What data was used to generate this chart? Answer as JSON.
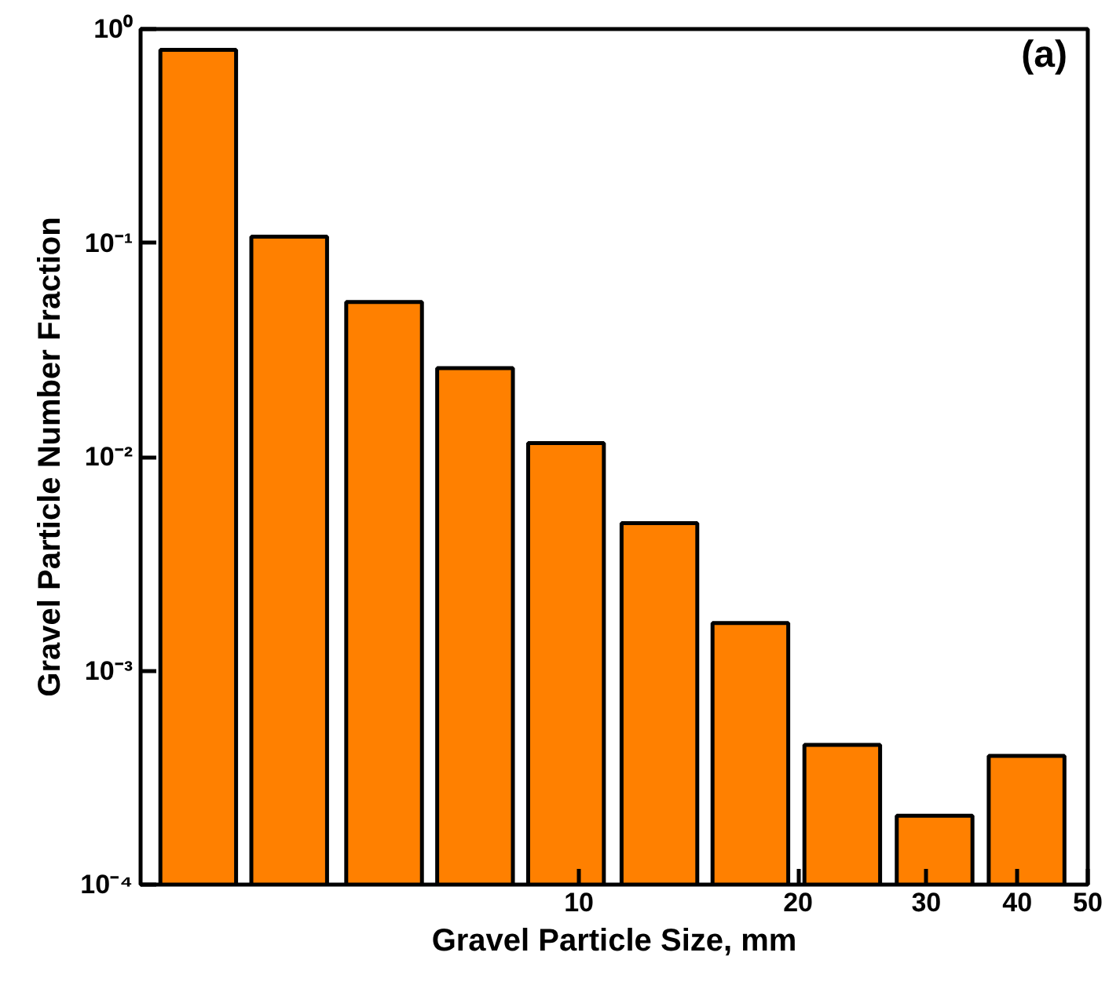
{
  "chart_data": {
    "type": "bar",
    "xlabel": "Gravel Particle Size, mm",
    "ylabel": "Gravel Particle Number Fraction",
    "annotations": [
      "(a)"
    ],
    "x": [
      3.0,
      4.0,
      5.4,
      7.2,
      9.6,
      12.9,
      17.2,
      23.0,
      30.8,
      41.2
    ],
    "series": [
      {
        "color": "#ff8000",
        "values": [
          0.8,
          0.107,
          0.053,
          0.026,
          0.0116,
          0.0049,
          0.00167,
          0.00045,
          0.00021,
          0.0004
        ]
      }
    ],
    "log": "xy",
    "xlim": [
      2.5,
      50
    ],
    "xticks": [
      10,
      20,
      30,
      40,
      50
    ],
    "ylim": [
      0.0001,
      1
    ],
    "yticks": [
      {
        "value": 0.0001,
        "label": "10⁻⁴"
      },
      {
        "value": 0.001,
        "label": "10⁻³"
      },
      {
        "value": 0.01,
        "label": "10⁻²"
      },
      {
        "value": 0.1,
        "label": "10⁻¹"
      },
      {
        "value": 1,
        "label": "10⁰"
      }
    ],
    "grid": false
  }
}
